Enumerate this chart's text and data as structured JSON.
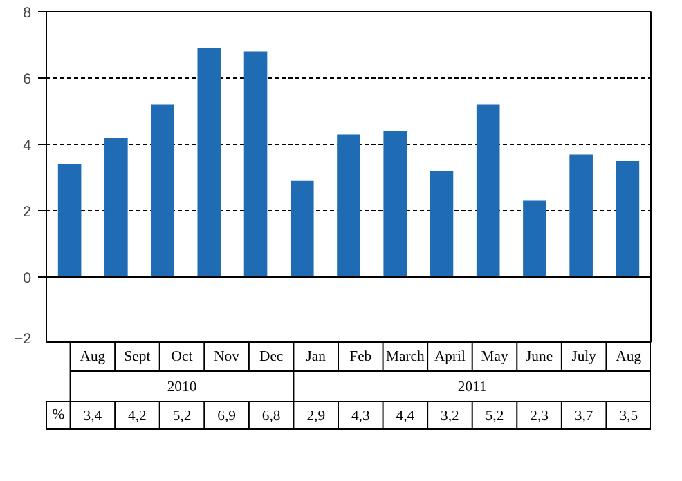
{
  "chart_data": {
    "type": "bar",
    "categories": [
      "Aug",
      "Sept",
      "Oct",
      "Nov",
      "Dec",
      "Jan",
      "Feb",
      "March",
      "April",
      "May",
      "June",
      "July",
      "Aug"
    ],
    "values": [
      3.4,
      4.2,
      5.2,
      6.9,
      6.8,
      2.9,
      4.3,
      4.4,
      3.2,
      5.2,
      2.3,
      3.7,
      3.5
    ],
    "value_labels": [
      "3,4",
      "4,2",
      "5,2",
      "6,9",
      "6,8",
      "2,9",
      "4,3",
      "4,4",
      "3,2",
      "5,2",
      "2,3",
      "3,7",
      "3,5"
    ],
    "color": "#1f6cb4",
    "ylim": [
      -2,
      8
    ],
    "yticks": [
      -2,
      0,
      2,
      4,
      6,
      8
    ],
    "grid": "y",
    "line_style": "dashed",
    "annotations": [
      "2010",
      "2011",
      "%"
    ]
  }
}
